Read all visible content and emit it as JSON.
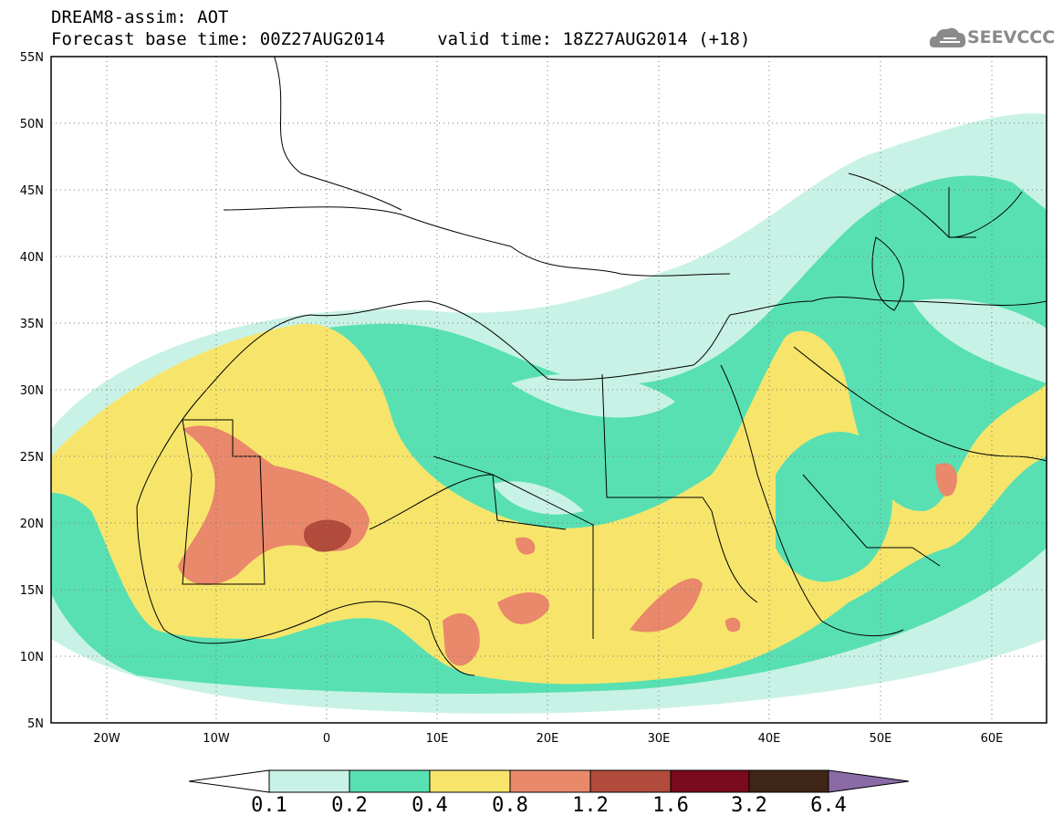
{
  "header": {
    "title_line1": "DREAM8-assim: AOT",
    "title_line2": "Forecast base time: 00Z27AUG2014     valid time: 18Z27AUG2014 (+18)"
  },
  "logo": {
    "icon": "cloud-icon",
    "text": "SEEVCCC",
    "color": "#8a8a8a"
  },
  "map": {
    "lon_range": [
      -25,
      65
    ],
    "lat_range": [
      5,
      55
    ],
    "lat_labels": [
      "55N",
      "50N",
      "45N",
      "40N",
      "35N",
      "30N",
      "25N",
      "20N",
      "15N",
      "10N",
      "5N"
    ],
    "lon_labels": [
      "20W",
      "10W",
      "0",
      "10E",
      "20E",
      "30E",
      "40E",
      "50E",
      "60E"
    ],
    "gridlines": "dotted"
  },
  "legend": {
    "colors": [
      "#ffffff",
      "#c9f2e6",
      "#58e0b3",
      "#f7e56b",
      "#e9896a",
      "#b14b3c",
      "#7a0a1e",
      "#402616",
      "#8a6ba5"
    ],
    "labels": [
      "0.1",
      "0.2",
      "0.4",
      "0.8",
      "1.2",
      "1.6",
      "3.2",
      "6.4"
    ]
  }
}
